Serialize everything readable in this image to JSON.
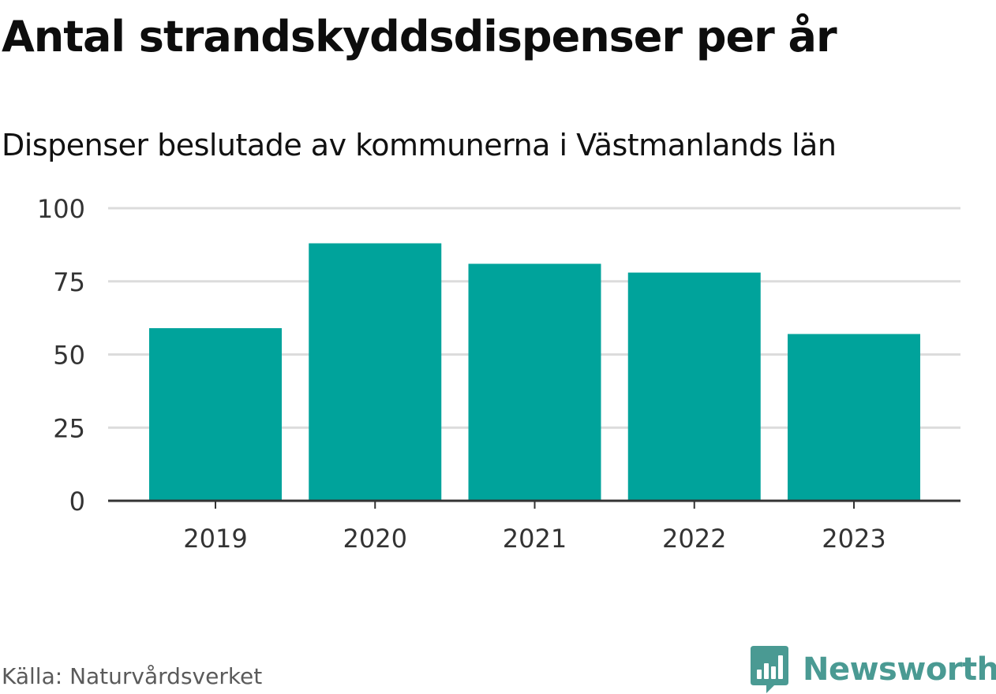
{
  "title": "Antal strandskyddsdispenser per år",
  "subtitle": "Dispenser beslutade av kommunerna i Västmanlands län",
  "source": "Källa: Naturvårdsverket",
  "brand": {
    "name": "Newsworthy",
    "logo_icon": "newsworthy-bar-chart-bubble-icon"
  },
  "colors": {
    "bar": "#00a39b",
    "brand": "#4a9a93",
    "grid": "#dcdcdc",
    "axis": "#333333"
  },
  "chart_data": {
    "type": "bar",
    "categories": [
      "2019",
      "2020",
      "2021",
      "2022",
      "2023"
    ],
    "values": [
      59,
      88,
      81,
      78,
      57
    ],
    "ylim": [
      0,
      100
    ],
    "yticks": [
      "0",
      "25",
      "50",
      "75",
      "100"
    ],
    "xlabel": "",
    "ylabel": "",
    "grid": true
  }
}
